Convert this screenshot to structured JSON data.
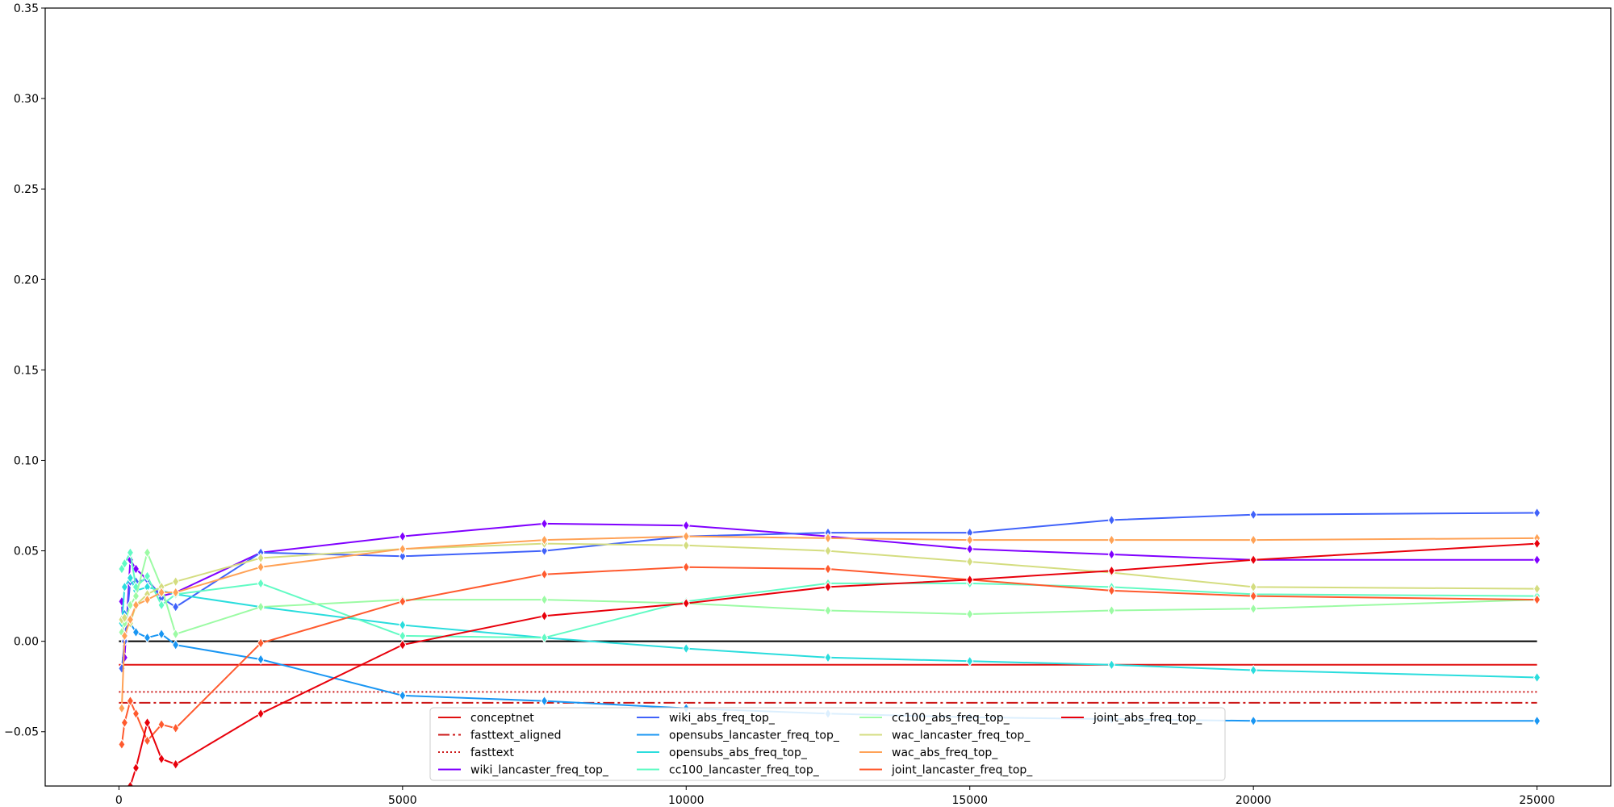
{
  "chart_data": {
    "type": "line",
    "title": "",
    "xlabel": "",
    "ylabel": "",
    "xlim": [
      -1300,
      26300
    ],
    "ylim": [
      -0.08,
      0.35
    ],
    "xticks": [
      0,
      5000,
      10000,
      15000,
      20000,
      25000
    ],
    "yticks": [
      -0.05,
      0.0,
      0.05,
      0.1,
      0.15,
      0.2,
      0.25,
      0.3,
      0.35
    ],
    "grid": false,
    "legend_position": "lower-center",
    "legend_columns": 4,
    "zero_line": {
      "y": 0.0,
      "x_range": [
        0,
        25000
      ],
      "color": "#000000"
    },
    "baselines": [
      {
        "name": "conceptnet",
        "value": -0.013,
        "x_range": [
          0,
          25000
        ],
        "color": "#e01010",
        "style": "solid"
      },
      {
        "name": "fasttext_aligned",
        "value": -0.034,
        "x_range": [
          0,
          25000
        ],
        "color": "#cc1818",
        "style": "dashdot"
      },
      {
        "name": "fasttext",
        "value": -0.028,
        "x_range": [
          0,
          25000
        ],
        "color": "#cc1818",
        "style": "dotted"
      }
    ],
    "series": [
      {
        "name": "wiki_lancaster_freq_top_",
        "color": "#8000ff",
        "x": [
          50,
          100,
          200,
          300,
          500,
          750,
          1000,
          2500,
          5000,
          7500,
          10000,
          12500,
          15000,
          17500,
          20000,
          25000
        ],
        "y": [
          0.022,
          -0.009,
          0.045,
          0.04,
          0.034,
          0.025,
          0.027,
          0.049,
          0.058,
          0.065,
          0.064,
          0.058,
          0.051,
          0.048,
          0.045,
          0.045
        ]
      },
      {
        "name": "wiki_abs_freq_top_",
        "color": "#4062fa",
        "x": [
          50,
          100,
          200,
          300,
          500,
          750,
          1000,
          2500,
          5000,
          7500,
          10000,
          12500,
          15000,
          17500,
          20000,
          25000
        ],
        "y": [
          -0.015,
          0.0,
          0.033,
          0.033,
          0.034,
          0.024,
          0.019,
          0.049,
          0.047,
          0.05,
          0.058,
          0.06,
          0.06,
          0.067,
          0.07,
          0.071
        ]
      },
      {
        "name": "opensubs_lancaster_freq_top_",
        "color": "#1996f3",
        "x": [
          50,
          100,
          200,
          300,
          500,
          750,
          1000,
          2500,
          5000,
          7500,
          10000,
          12500,
          15000,
          17500,
          20000,
          25000
        ],
        "y": [
          0.005,
          0.015,
          0.01,
          0.005,
          0.002,
          0.004,
          -0.002,
          -0.01,
          -0.03,
          -0.033,
          -0.037,
          -0.04,
          -0.042,
          -0.043,
          -0.044,
          -0.044
        ]
      },
      {
        "name": "opensubs_abs_freq_top_",
        "color": "#2adddd",
        "x": [
          50,
          100,
          200,
          300,
          500,
          750,
          1000,
          2500,
          5000,
          7500,
          10000,
          12500,
          15000,
          17500,
          20000,
          25000
        ],
        "y": [
          0.01,
          0.03,
          0.035,
          0.028,
          0.03,
          0.028,
          0.026,
          0.019,
          0.009,
          0.002,
          -0.004,
          -0.009,
          -0.011,
          -0.013,
          -0.016,
          -0.02
        ]
      },
      {
        "name": "cc100_lancaster_freq_top_",
        "color": "#62fbc4",
        "x": [
          50,
          100,
          200,
          300,
          500,
          750,
          1000,
          2500,
          5000,
          7500,
          10000,
          12500,
          15000,
          17500,
          20000,
          25000
        ],
        "y": [
          0.04,
          0.043,
          0.049,
          0.03,
          0.036,
          0.02,
          0.026,
          0.032,
          0.003,
          0.002,
          0.022,
          0.032,
          0.032,
          0.03,
          0.026,
          0.025
        ]
      },
      {
        "name": "cc100_abs_freq_top_",
        "color": "#9cfba4",
        "x": [
          50,
          100,
          200,
          300,
          500,
          750,
          1000,
          2500,
          5000,
          7500,
          10000,
          12500,
          15000,
          17500,
          20000,
          25000
        ],
        "y": [
          0.005,
          0.01,
          0.02,
          0.025,
          0.049,
          0.03,
          0.004,
          0.019,
          0.023,
          0.023,
          0.021,
          0.017,
          0.015,
          0.017,
          0.018,
          0.023
        ]
      },
      {
        "name": "wac_lancaster_freq_top_",
        "color": "#d4dd80",
        "x": [
          50,
          100,
          200,
          300,
          500,
          750,
          1000,
          2500,
          5000,
          7500,
          10000,
          12500,
          15000,
          17500,
          20000,
          25000
        ],
        "y": [
          0.012,
          0.013,
          0.01,
          0.02,
          0.026,
          0.03,
          0.033,
          0.046,
          0.051,
          0.054,
          0.053,
          0.05,
          0.044,
          0.038,
          0.03,
          0.029
        ]
      },
      {
        "name": "wac_abs_freq_top_",
        "color": "#ffa256",
        "x": [
          50,
          100,
          200,
          300,
          500,
          750,
          1000,
          2500,
          5000,
          7500,
          10000,
          12500,
          15000,
          17500,
          20000,
          25000
        ],
        "y": [
          -0.037,
          0.003,
          0.012,
          0.02,
          0.023,
          0.027,
          0.027,
          0.041,
          0.051,
          0.056,
          0.058,
          0.057,
          0.056,
          0.056,
          0.056,
          0.057
        ]
      },
      {
        "name": "joint_lancaster_freq_top_",
        "color": "#ff5a2e",
        "x": [
          50,
          100,
          200,
          300,
          500,
          750,
          1000,
          2500,
          5000,
          7500,
          10000,
          12500,
          15000,
          17500,
          20000,
          25000
        ],
        "y": [
          -0.057,
          -0.045,
          -0.033,
          -0.04,
          -0.055,
          -0.046,
          -0.048,
          -0.001,
          0.022,
          0.037,
          0.041,
          0.04,
          0.034,
          0.028,
          0.025,
          0.023
        ]
      },
      {
        "name": "joint_abs_freq_top_",
        "color": "#e8000b",
        "x": [
          100,
          200,
          300,
          500,
          750,
          1000,
          2500,
          5000,
          7500,
          10000,
          12500,
          15000,
          17500,
          20000,
          25000
        ],
        "y": [
          -0.1,
          -0.08,
          -0.07,
          -0.045,
          -0.065,
          -0.068,
          -0.04,
          -0.002,
          0.014,
          0.021,
          0.03,
          0.034,
          0.039,
          0.045,
          0.054
        ]
      }
    ],
    "legend_order": [
      "conceptnet",
      "fasttext_aligned",
      "fasttext",
      "wiki_lancaster_freq_top_",
      "wiki_abs_freq_top_",
      "opensubs_lancaster_freq_top_",
      "opensubs_abs_freq_top_",
      "cc100_lancaster_freq_top_",
      "cc100_abs_freq_top_",
      "wac_lancaster_freq_top_",
      "wac_abs_freq_top_",
      "joint_lancaster_freq_top_",
      "joint_abs_freq_top_"
    ]
  }
}
